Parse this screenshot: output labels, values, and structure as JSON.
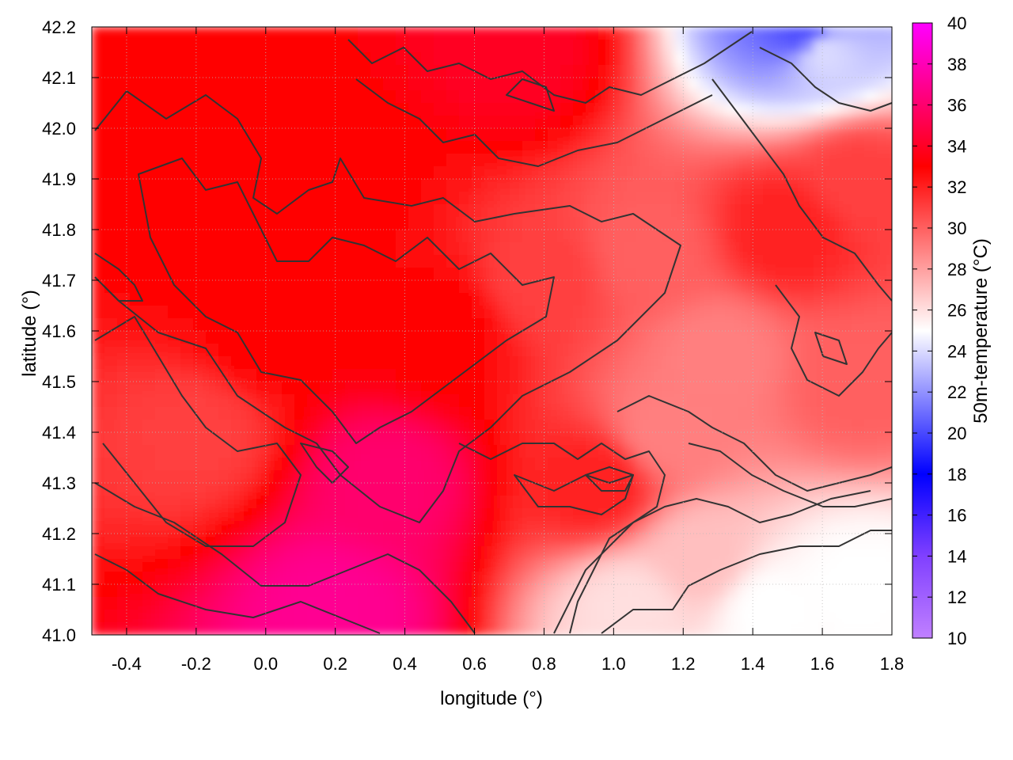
{
  "chart_data": {
    "type": "heatmap",
    "title": "",
    "xlabel": "longitude (°)",
    "ylabel": "latitude (°)",
    "xlim": [
      -0.5,
      1.8
    ],
    "ylim": [
      41.0,
      42.2
    ],
    "xticks": [
      -0.4,
      -0.2,
      0.0,
      0.2,
      0.4,
      0.6,
      0.8,
      1.0,
      1.2,
      1.4,
      1.6,
      1.8
    ],
    "yticks": [
      41.0,
      41.1,
      41.2,
      41.3,
      41.4,
      41.5,
      41.6,
      41.7,
      41.8,
      41.9,
      42.0,
      42.1,
      42.2
    ],
    "xtick_labels": [
      "-0.4",
      "-0.2",
      "0.0",
      "0.2",
      "0.4",
      "0.6",
      "0.8",
      "1.0",
      "1.2",
      "1.4",
      "1.6",
      "1.8"
    ],
    "ytick_labels": [
      "41.0",
      "41.1",
      "41.2",
      "41.3",
      "41.4",
      "41.5",
      "41.6",
      "41.7",
      "41.8",
      "41.9",
      "42.0",
      "42.1",
      "42.2"
    ],
    "grid": true,
    "colorbar": {
      "label": "50m-temperature (°C)",
      "range": [
        10,
        40
      ],
      "ticks": [
        10,
        12,
        14,
        16,
        18,
        20,
        22,
        24,
        26,
        28,
        30,
        32,
        34,
        36,
        38,
        40
      ],
      "tick_labels": [
        "10",
        "12",
        "14",
        "16",
        "18",
        "20",
        "22",
        "24",
        "26",
        "28",
        "30",
        "32",
        "34",
        "36",
        "38",
        "40"
      ],
      "colors": [
        "#c080ff",
        "#8040ff",
        "#0000ff",
        "#ffffff",
        "#ff0000",
        "#ff00ff"
      ],
      "color_stops": [
        10,
        14,
        18,
        25,
        33,
        40
      ]
    },
    "field_samples": [
      {
        "lon": -0.4,
        "lat": 42.15,
        "temp": 33
      },
      {
        "lon": -0.2,
        "lat": 41.8,
        "temp": 33
      },
      {
        "lon": -0.2,
        "lat": 41.4,
        "temp": 31
      },
      {
        "lon": 0.0,
        "lat": 41.6,
        "temp": 33
      },
      {
        "lon": 0.2,
        "lat": 41.9,
        "temp": 33
      },
      {
        "lon": 0.35,
        "lat": 41.3,
        "temp": 36
      },
      {
        "lon": 0.2,
        "lat": 41.05,
        "temp": 37
      },
      {
        "lon": 0.5,
        "lat": 41.6,
        "temp": 33
      },
      {
        "lon": 0.7,
        "lat": 42.15,
        "temp": 34
      },
      {
        "lon": 0.8,
        "lat": 41.7,
        "temp": 31
      },
      {
        "lon": 1.1,
        "lat": 41.75,
        "temp": 30
      },
      {
        "lon": 1.15,
        "lat": 41.4,
        "temp": 29
      },
      {
        "lon": 1.3,
        "lat": 41.55,
        "temp": 29
      },
      {
        "lon": 1.25,
        "lat": 41.15,
        "temp": 27
      },
      {
        "lon": 1.5,
        "lat": 41.8,
        "temp": 32
      },
      {
        "lon": 1.6,
        "lat": 42.15,
        "temp": 24
      },
      {
        "lon": 1.55,
        "lat": 42.19,
        "temp": 20
      },
      {
        "lon": 1.45,
        "lat": 41.05,
        "temp": 25
      },
      {
        "lon": 1.7,
        "lat": 41.1,
        "temp": 25
      },
      {
        "lon": 1.7,
        "lat": 41.5,
        "temp": 30
      },
      {
        "lon": 1.7,
        "lat": 41.9,
        "temp": 31
      },
      {
        "lon": 1.05,
        "lat": 41.05,
        "temp": 26
      },
      {
        "lon": 0.95,
        "lat": 41.3,
        "temp": 32
      }
    ]
  }
}
